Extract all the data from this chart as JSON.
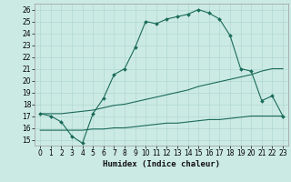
{
  "xlabel": "Humidex (Indice chaleur)",
  "bg_color": "#cceae4",
  "grid_color": "#b0d8d0",
  "line_color": "#1a6b5a",
  "xlim": [
    -0.5,
    23.5
  ],
  "ylim": [
    14.5,
    26.5
  ],
  "xticks": [
    0,
    1,
    2,
    3,
    4,
    5,
    6,
    7,
    8,
    9,
    10,
    11,
    12,
    13,
    14,
    15,
    16,
    17,
    18,
    19,
    20,
    21,
    22,
    23
  ],
  "yticks": [
    15,
    16,
    17,
    18,
    19,
    20,
    21,
    22,
    23,
    24,
    25,
    26
  ],
  "curve1_x": [
    0,
    1,
    2,
    3,
    4,
    5,
    6,
    7,
    8,
    9,
    10,
    11,
    12,
    13,
    14,
    15,
    16,
    17,
    18,
    19,
    20,
    21,
    22,
    23
  ],
  "curve1_y": [
    17.2,
    17.0,
    16.5,
    15.3,
    14.7,
    17.2,
    18.5,
    20.5,
    21.0,
    22.8,
    25.0,
    24.8,
    25.2,
    25.4,
    25.6,
    26.0,
    25.7,
    25.2,
    23.8,
    21.0,
    20.8,
    18.3,
    18.7,
    17.0
  ],
  "curve2_x": [
    0,
    1,
    2,
    3,
    4,
    5,
    6,
    7,
    8,
    9,
    10,
    11,
    12,
    13,
    14,
    15,
    16,
    17,
    18,
    19,
    20,
    21,
    22,
    23
  ],
  "curve2_y": [
    17.2,
    17.2,
    17.2,
    17.3,
    17.4,
    17.5,
    17.7,
    17.9,
    18.0,
    18.2,
    18.4,
    18.6,
    18.8,
    19.0,
    19.2,
    19.5,
    19.7,
    19.9,
    20.1,
    20.3,
    20.5,
    20.8,
    21.0,
    21.0
  ],
  "curve3_x": [
    0,
    1,
    2,
    3,
    4,
    5,
    6,
    7,
    8,
    9,
    10,
    11,
    12,
    13,
    14,
    15,
    16,
    17,
    18,
    19,
    20,
    21,
    22,
    23
  ],
  "curve3_y": [
    15.8,
    15.8,
    15.8,
    15.8,
    15.8,
    15.9,
    15.9,
    16.0,
    16.0,
    16.1,
    16.2,
    16.3,
    16.4,
    16.4,
    16.5,
    16.6,
    16.7,
    16.7,
    16.8,
    16.9,
    17.0,
    17.0,
    17.0,
    17.0
  ]
}
